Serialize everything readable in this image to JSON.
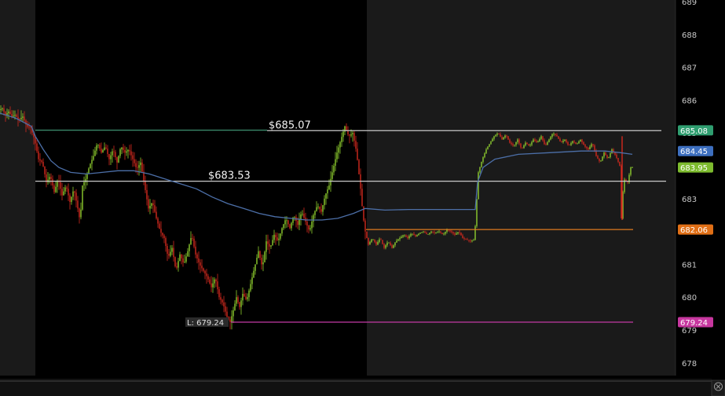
{
  "chart_data": {
    "type": "candlestick",
    "title": "",
    "xlabel": "",
    "ylabel": "",
    "ylim": [
      677.8,
      689.05
    ],
    "y_ticks": [
      "689",
      "688",
      "687",
      "686",
      "685",
      "684",
      "683",
      "682",
      "681",
      "680",
      "679",
      "678"
    ],
    "y_tick_values": [
      689,
      688,
      687,
      686,
      685,
      684,
      683,
      682,
      681,
      680,
      679,
      678
    ],
    "grid": false,
    "colors": {
      "background": "#000000",
      "shade": "#1a1a1a",
      "axis_panel": "#000000",
      "up": "#8fcf2f",
      "down": "#d42a1e",
      "vwap": "#4c6fa8",
      "resistance": "#4fb88e",
      "support": "#e07a1f",
      "low": "#c23aa5",
      "horizontal_white": "#d9d9d9"
    },
    "level_lines": [
      {
        "name": "",
        "value": 685.07,
        "label": "$685.07",
        "color": "#c9c9c9"
      },
      {
        "name": "",
        "value": 683.53,
        "label": "$683.53",
        "color": "#c9c9c9"
      },
      {
        "name": "",
        "value": 682.06,
        "label": "",
        "color": "#e07a1f"
      },
      {
        "name": "",
        "value": 679.24,
        "label": "L: 679.24",
        "color": "#c23aa5"
      }
    ],
    "badges": [
      {
        "value": 685.08,
        "text": "685.08",
        "color": "#2f9e70"
      },
      {
        "value": 684.45,
        "text": "684.45",
        "color": "#3d6fbf"
      },
      {
        "value": 683.95,
        "text": "683.95",
        "color": "#7dbb2e"
      },
      {
        "value": 682.06,
        "text": "682.06",
        "color": "#e06f16"
      },
      {
        "value": 679.24,
        "text": "679.24",
        "color": "#c7379f"
      }
    ],
    "price_path": [
      [
        0,
        685.7
      ],
      [
        4,
        685.75
      ],
      [
        8,
        685.55
      ],
      [
        12,
        685.65
      ],
      [
        16,
        685.5
      ],
      [
        20,
        685.55
      ],
      [
        25,
        685.4
      ],
      [
        30,
        685.5
      ],
      [
        35,
        685.2
      ],
      [
        40,
        685.15
      ],
      [
        45,
        684.8
      ],
      [
        50,
        684.2
      ],
      [
        55,
        684.1
      ],
      [
        60,
        683.5
      ],
      [
        65,
        683.7
      ],
      [
        70,
        683.2
      ],
      [
        75,
        683.6
      ],
      [
        80,
        683.1
      ],
      [
        85,
        683.4
      ],
      [
        90,
        682.9
      ],
      [
        95,
        683.3
      ],
      [
        100,
        682.7
      ],
      [
        103,
        682.3
      ],
      [
        106,
        683.4
      ],
      [
        110,
        683.6
      ],
      [
        115,
        684.0
      ],
      [
        120,
        684.3
      ],
      [
        125,
        684.7
      ],
      [
        130,
        684.4
      ],
      [
        135,
        684.6
      ],
      [
        140,
        684.2
      ],
      [
        145,
        684.5
      ],
      [
        150,
        684.1
      ],
      [
        155,
        684.6
      ],
      [
        160,
        684.4
      ],
      [
        165,
        684.5
      ],
      [
        170,
        684.2
      ],
      [
        175,
        683.9
      ],
      [
        180,
        684.1
      ],
      [
        185,
        683.4
      ],
      [
        190,
        682.7
      ],
      [
        195,
        682.9
      ],
      [
        200,
        682.4
      ],
      [
        205,
        682.0
      ],
      [
        210,
        681.8
      ],
      [
        215,
        681.2
      ],
      [
        220,
        681.5
      ],
      [
        225,
        680.8
      ],
      [
        230,
        681.3
      ],
      [
        235,
        681.0
      ],
      [
        240,
        681.4
      ],
      [
        245,
        681.9
      ],
      [
        250,
        681.3
      ],
      [
        255,
        681.0
      ],
      [
        260,
        680.8
      ],
      [
        265,
        680.6
      ],
      [
        270,
        680.3
      ],
      [
        275,
        680.6
      ],
      [
        280,
        680.0
      ],
      [
        285,
        679.8
      ],
      [
        290,
        679.4
      ],
      [
        294,
        679.24
      ],
      [
        298,
        679.6
      ],
      [
        302,
        680.0
      ],
      [
        306,
        679.7
      ],
      [
        310,
        680.1
      ],
      [
        315,
        679.9
      ],
      [
        320,
        680.4
      ],
      [
        325,
        680.9
      ],
      [
        330,
        681.4
      ],
      [
        335,
        680.9
      ],
      [
        340,
        681.7
      ],
      [
        345,
        681.5
      ],
      [
        350,
        681.9
      ],
      [
        355,
        681.7
      ],
      [
        360,
        682.1
      ],
      [
        365,
        682.4
      ],
      [
        370,
        682.1
      ],
      [
        375,
        682.5
      ],
      [
        380,
        682.2
      ],
      [
        385,
        682.6
      ],
      [
        390,
        682.3
      ],
      [
        395,
        682.0
      ],
      [
        400,
        682.5
      ],
      [
        405,
        682.8
      ],
      [
        410,
        682.6
      ],
      [
        415,
        683.1
      ],
      [
        420,
        683.4
      ],
      [
        425,
        683.9
      ],
      [
        430,
        684.4
      ],
      [
        435,
        684.8
      ],
      [
        440,
        685.2
      ],
      [
        445,
        684.9
      ],
      [
        450,
        685.0
      ],
      [
        455,
        684.4
      ],
      [
        460,
        683.3
      ],
      [
        463,
        682.5
      ],
      [
        466,
        682.0
      ],
      [
        470,
        681.6
      ],
      [
        475,
        681.8
      ],
      [
        480,
        681.6
      ],
      [
        485,
        681.8
      ],
      [
        490,
        681.5
      ],
      [
        495,
        681.7
      ],
      [
        500,
        681.5
      ],
      [
        505,
        681.7
      ],
      [
        510,
        681.8
      ],
      [
        515,
        681.9
      ],
      [
        520,
        681.8
      ],
      [
        525,
        681.95
      ],
      [
        530,
        681.85
      ],
      [
        535,
        681.95
      ],
      [
        540,
        682.0
      ],
      [
        545,
        681.9
      ],
      [
        550,
        682.0
      ],
      [
        555,
        681.95
      ],
      [
        560,
        682.0
      ],
      [
        565,
        681.9
      ],
      [
        570,
        682.05
      ],
      [
        575,
        682.0
      ],
      [
        580,
        681.9
      ],
      [
        585,
        682.0
      ],
      [
        590,
        681.8
      ],
      [
        595,
        681.75
      ],
      [
        600,
        681.7
      ],
      [
        605,
        681.75
      ],
      [
        610,
        683.8
      ],
      [
        615,
        684.2
      ],
      [
        620,
        684.5
      ],
      [
        625,
        684.7
      ],
      [
        630,
        684.9
      ],
      [
        635,
        685.0
      ],
      [
        640,
        684.8
      ],
      [
        645,
        684.95
      ],
      [
        650,
        684.7
      ],
      [
        655,
        684.6
      ],
      [
        660,
        684.8
      ],
      [
        665,
        684.5
      ],
      [
        670,
        684.7
      ],
      [
        675,
        684.6
      ],
      [
        680,
        684.8
      ],
      [
        685,
        684.7
      ],
      [
        690,
        684.9
      ],
      [
        695,
        684.6
      ],
      [
        700,
        684.8
      ],
      [
        705,
        685.0
      ],
      [
        710,
        684.9
      ],
      [
        715,
        684.7
      ],
      [
        720,
        684.8
      ],
      [
        725,
        684.6
      ],
      [
        730,
        684.75
      ],
      [
        735,
        684.65
      ],
      [
        740,
        684.8
      ],
      [
        745,
        684.6
      ],
      [
        750,
        684.5
      ],
      [
        755,
        684.7
      ],
      [
        760,
        684.3
      ],
      [
        765,
        684.1
      ],
      [
        770,
        684.4
      ],
      [
        775,
        684.2
      ],
      [
        780,
        684.5
      ],
      [
        785,
        684.3
      ],
      [
        790,
        684.0
      ],
      [
        792,
        682.4
      ],
      [
        795,
        683.6
      ],
      [
        800,
        683.5
      ],
      [
        804,
        683.95
      ]
    ],
    "vwap_path": [
      [
        0,
        685.6
      ],
      [
        20,
        685.45
      ],
      [
        40,
        685.2
      ],
      [
        45,
        684.9
      ],
      [
        55,
        684.5
      ],
      [
        65,
        684.15
      ],
      [
        75,
        683.95
      ],
      [
        90,
        683.8
      ],
      [
        110,
        683.75
      ],
      [
        130,
        683.8
      ],
      [
        150,
        683.85
      ],
      [
        170,
        683.85
      ],
      [
        190,
        683.75
      ],
      [
        210,
        683.6
      ],
      [
        230,
        683.45
      ],
      [
        250,
        683.3
      ],
      [
        270,
        683.05
      ],
      [
        290,
        682.85
      ],
      [
        310,
        682.7
      ],
      [
        330,
        682.55
      ],
      [
        350,
        682.45
      ],
      [
        370,
        682.4
      ],
      [
        390,
        682.35
      ],
      [
        410,
        682.35
      ],
      [
        430,
        682.4
      ],
      [
        450,
        682.55
      ],
      [
        465,
        682.7
      ],
      [
        490,
        682.65
      ],
      [
        520,
        682.67
      ],
      [
        560,
        682.67
      ],
      [
        600,
        682.67
      ],
      [
        605,
        682.67
      ],
      [
        608,
        683.5
      ],
      [
        615,
        683.95
      ],
      [
        630,
        684.2
      ],
      [
        660,
        684.35
      ],
      [
        700,
        684.4
      ],
      [
        740,
        684.45
      ],
      [
        770,
        684.45
      ],
      [
        790,
        684.4
      ],
      [
        805,
        684.35
      ]
    ]
  }
}
